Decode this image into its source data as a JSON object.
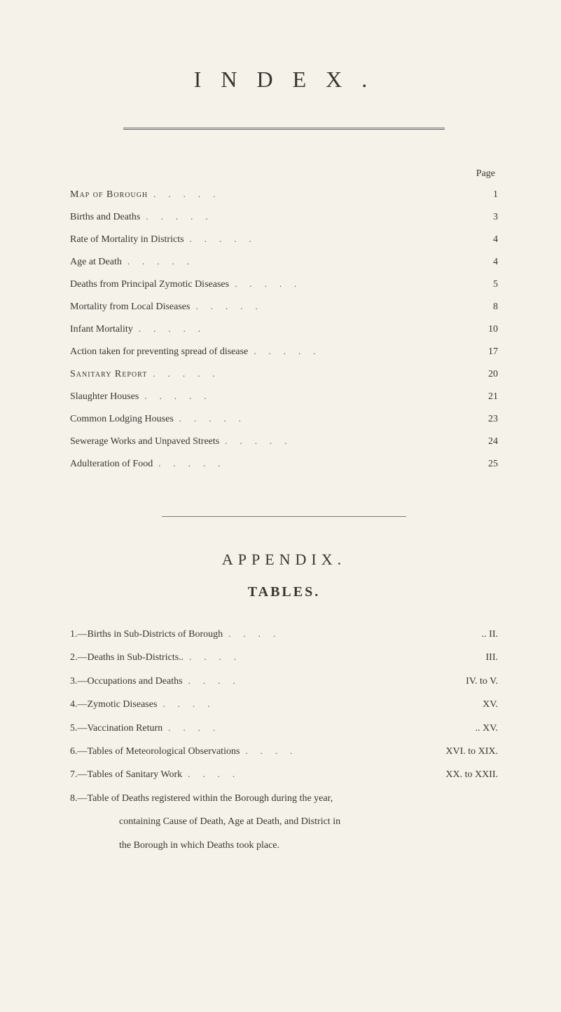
{
  "title": "I N D E X .",
  "page_label": "Page",
  "index": [
    {
      "label": "Map of Borough",
      "page": "1",
      "smallcaps": true
    },
    {
      "label": "Births and Deaths",
      "page": "3"
    },
    {
      "label": "Rate of Mortality in Districts",
      "page": "4"
    },
    {
      "label": "Age at Death",
      "page": "4"
    },
    {
      "label": "Deaths from Principal Zymotic Diseases",
      "page": "5"
    },
    {
      "label": "Mortality from Local Diseases",
      "page": "8"
    },
    {
      "label": "Infant Mortality",
      "page": "10"
    },
    {
      "label": "Action taken for preventing spread of disease",
      "page": "17"
    },
    {
      "label": "Sanitary Report",
      "page": "20",
      "smallcaps": true
    },
    {
      "label": "Slaughter Houses",
      "page": "21"
    },
    {
      "label": "Common Lodging Houses",
      "page": "23"
    },
    {
      "label": "Sewerage Works and Unpaved Streets",
      "page": "24"
    },
    {
      "label": "Adulteration of Food",
      "page": "25"
    }
  ],
  "appendix_title": "APPENDIX.",
  "tables_title": "TABLES.",
  "appendix": [
    {
      "num": "1.—",
      "label": "Births in Sub-Districts of Borough",
      "ref": ".. II."
    },
    {
      "num": "2.—",
      "label": "Deaths in Sub-Districts..",
      "ref": "III."
    },
    {
      "num": "3.—",
      "label": "Occupations and Deaths",
      "ref": "IV. to V."
    },
    {
      "num": "4.—",
      "label": "Zymotic Diseases",
      "ref": "XV."
    },
    {
      "num": "5.—",
      "label": "Vaccination Return",
      "ref": ".. XV."
    },
    {
      "num": "6.—",
      "label": "Tables of Meteorological Observations",
      "ref": "XVI. to XIX."
    },
    {
      "num": "7.—",
      "label": "Tables of Sanitary Work",
      "ref": "XX. to XXII."
    }
  ],
  "appendix_full": "8.—Table of Deaths registered within the Borough during the year,",
  "appendix_cont1": "containing Cause of Death, Age at Death, and District in",
  "appendix_cont2": "the Borough in which Deaths took place.",
  "colors": {
    "background": "#f5f2ea",
    "text": "#3a3530",
    "rule": "#666666"
  }
}
